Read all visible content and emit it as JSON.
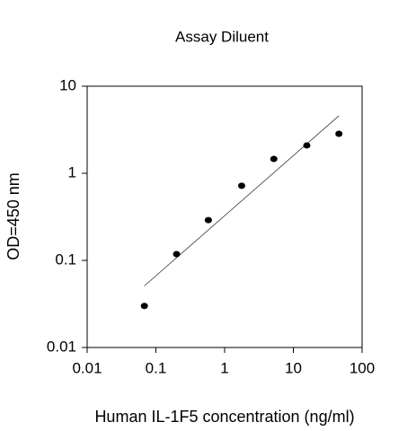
{
  "chart_data": {
    "type": "scatter",
    "title": "Assay Diluent",
    "xlabel": "Human IL-1F5 concentration (ng/ml)",
    "ylabel": "OD=450 nm",
    "x": [
      0.068,
      0.2,
      0.58,
      1.77,
      5.2,
      15.7,
      46
    ],
    "values": [
      0.03,
      0.118,
      0.29,
      0.72,
      1.46,
      2.09,
      2.84
    ],
    "color": "#000000",
    "xscale": "log",
    "yscale": "log",
    "xlim": [
      0.01,
      100
    ],
    "ylim": [
      0.01,
      10
    ],
    "xticks": [
      0.01,
      0.1,
      1,
      10,
      100
    ],
    "yticks": [
      0.01,
      0.1,
      1,
      10
    ],
    "trendline": {
      "x": [
        0.068,
        46
      ],
      "values": [
        0.051,
        4.57
      ]
    }
  }
}
